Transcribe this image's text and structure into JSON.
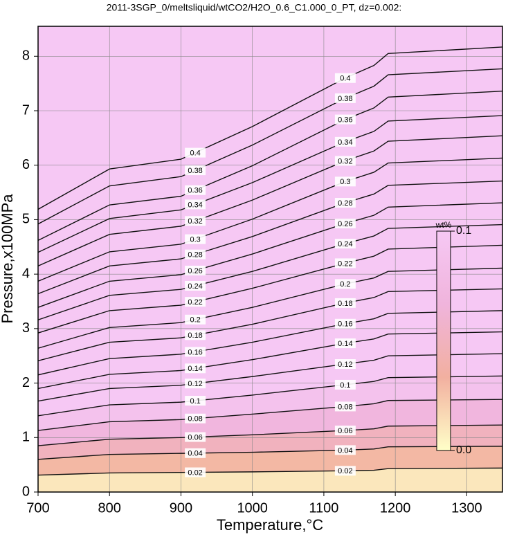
{
  "chart_data": {
    "type": "contour",
    "title": "2011-3SGP_0/meltsliquid/wtCO2/H2O_0.6_C1.000_0_PT, dz=0.002:",
    "xlabel": "Temperature,°C",
    "ylabel": "Pressure,x100MPa",
    "xlim": [
      700,
      1350
    ],
    "ylim": [
      0,
      8.55
    ],
    "xticks": [
      700,
      800,
      900,
      1000,
      1100,
      1200,
      1300
    ],
    "yticks": [
      0,
      1,
      2,
      3,
      4,
      5,
      6,
      7,
      8
    ],
    "grid": true,
    "x": [
      700,
      800,
      900,
      1000,
      1130,
      1170,
      1190,
      1350
    ],
    "contours": [
      {
        "level": 0.02,
        "values": [
          0.31,
          0.35,
          0.36,
          0.37,
          0.39,
          0.4,
          0.43,
          0.44
        ]
      },
      {
        "level": 0.04,
        "values": [
          0.6,
          0.69,
          0.71,
          0.73,
          0.77,
          0.79,
          0.83,
          0.84
        ]
      },
      {
        "level": 0.06,
        "values": [
          0.85,
          0.97,
          1.0,
          1.05,
          1.13,
          1.16,
          1.21,
          1.23
        ]
      },
      {
        "level": 0.08,
        "values": [
          1.13,
          1.29,
          1.33,
          1.43,
          1.57,
          1.62,
          1.68,
          1.7
        ]
      },
      {
        "level": 0.1,
        "values": [
          1.4,
          1.6,
          1.65,
          1.78,
          1.97,
          2.03,
          2.1,
          2.13
        ]
      },
      {
        "level": 0.12,
        "values": [
          1.67,
          1.9,
          1.96,
          2.12,
          2.35,
          2.42,
          2.5,
          2.54
        ]
      },
      {
        "level": 0.14,
        "values": [
          1.9,
          2.16,
          2.23,
          2.43,
          2.73,
          2.81,
          2.9,
          2.94
        ]
      },
      {
        "level": 0.16,
        "values": [
          2.15,
          2.45,
          2.53,
          2.75,
          3.09,
          3.18,
          3.28,
          3.33
        ]
      },
      {
        "level": 0.18,
        "values": [
          2.41,
          2.75,
          2.83,
          3.08,
          3.47,
          3.57,
          3.68,
          3.73
        ]
      },
      {
        "level": 0.2,
        "values": [
          2.64,
          3.02,
          3.11,
          3.39,
          3.82,
          3.93,
          4.05,
          4.11
        ]
      },
      {
        "level": 0.22,
        "values": [
          2.92,
          3.33,
          3.43,
          3.74,
          4.2,
          4.33,
          4.46,
          4.53
        ]
      },
      {
        "level": 0.24,
        "values": [
          3.16,
          3.61,
          3.72,
          4.05,
          4.56,
          4.7,
          4.84,
          4.91
        ]
      },
      {
        "level": 0.26,
        "values": [
          3.39,
          3.87,
          3.99,
          4.37,
          4.93,
          5.08,
          5.23,
          5.31
        ]
      },
      {
        "level": 0.28,
        "values": [
          3.64,
          4.15,
          4.28,
          4.69,
          5.31,
          5.47,
          5.63,
          5.71
        ]
      },
      {
        "level": 0.3,
        "values": [
          3.87,
          4.41,
          4.55,
          5.01,
          5.7,
          5.87,
          6.04,
          6.13
        ]
      },
      {
        "level": 0.32,
        "values": [
          4.15,
          4.73,
          4.88,
          5.36,
          6.08,
          6.26,
          6.44,
          6.54
        ]
      },
      {
        "level": 0.34,
        "values": [
          4.4,
          5.02,
          5.18,
          5.68,
          6.43,
          6.62,
          6.81,
          6.91
        ]
      },
      {
        "level": 0.36,
        "values": [
          4.62,
          5.27,
          5.43,
          5.99,
          6.84,
          7.05,
          7.25,
          7.36
        ]
      },
      {
        "level": 0.38,
        "values": [
          4.92,
          5.62,
          5.79,
          6.37,
          7.23,
          7.45,
          7.66,
          7.77
        ]
      },
      {
        "level": 0.4,
        "values": [
          5.19,
          5.93,
          6.11,
          6.71,
          7.6,
          7.83,
          8.05,
          8.17
        ]
      }
    ],
    "label_x": [
      920,
      1130
    ],
    "colormap": [
      "#ffffc8",
      "#f2b0a0",
      "#f0b4dc",
      "#f6c8f4"
    ],
    "colorbar": {
      "label": "wt%",
      "lim": [
        0,
        0.1
      ],
      "ticks": [
        {
          "value": 0,
          "label": "0.0"
        },
        0.1
      ]
    }
  }
}
